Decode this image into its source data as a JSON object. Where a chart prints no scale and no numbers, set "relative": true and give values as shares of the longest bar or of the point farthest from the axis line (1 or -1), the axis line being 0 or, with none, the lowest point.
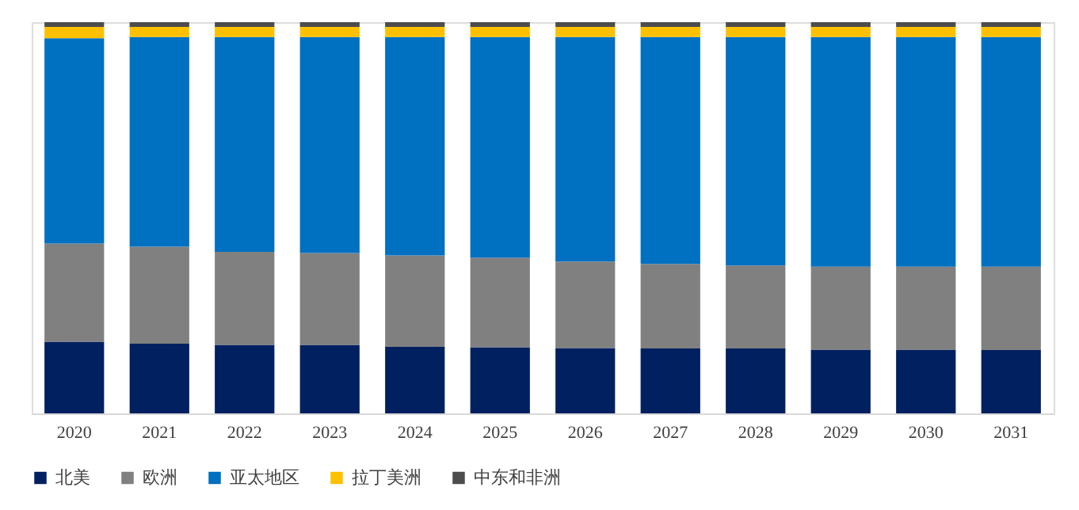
{
  "chart_data": {
    "type": "bar",
    "stacked": true,
    "relative": true,
    "grid": false,
    "legend": "bottom",
    "categories": [
      "2020",
      "2021",
      "2022",
      "2023",
      "2024",
      "2025",
      "2026",
      "2027",
      "2028",
      "2029",
      "2030",
      "2031"
    ],
    "series": [
      {
        "name": "北美",
        "color": "#002060",
        "values": [
          0.183,
          0.178,
          0.175,
          0.175,
          0.17,
          0.169,
          0.167,
          0.166,
          0.166,
          0.163,
          0.163,
          0.162
        ]
      },
      {
        "name": "欧洲",
        "color": "#808080",
        "values": [
          0.251,
          0.248,
          0.238,
          0.235,
          0.234,
          0.229,
          0.221,
          0.216,
          0.212,
          0.212,
          0.212,
          0.213
        ]
      },
      {
        "name": "亚太地区",
        "color": "#0070c0",
        "values": [
          0.525,
          0.536,
          0.549,
          0.552,
          0.558,
          0.564,
          0.574,
          0.58,
          0.584,
          0.587,
          0.587,
          0.587
        ]
      },
      {
        "name": "拉丁美洲",
        "color": "#ffc000",
        "values": [
          0.029,
          0.026,
          0.026,
          0.026,
          0.026,
          0.026,
          0.026,
          0.026,
          0.026,
          0.026,
          0.026,
          0.026
        ]
      },
      {
        "name": "中东和非洲",
        "color": "#4d4d4d",
        "values": [
          0.012,
          0.012,
          0.012,
          0.012,
          0.012,
          0.012,
          0.012,
          0.012,
          0.012,
          0.012,
          0.012,
          0.012
        ]
      }
    ]
  }
}
